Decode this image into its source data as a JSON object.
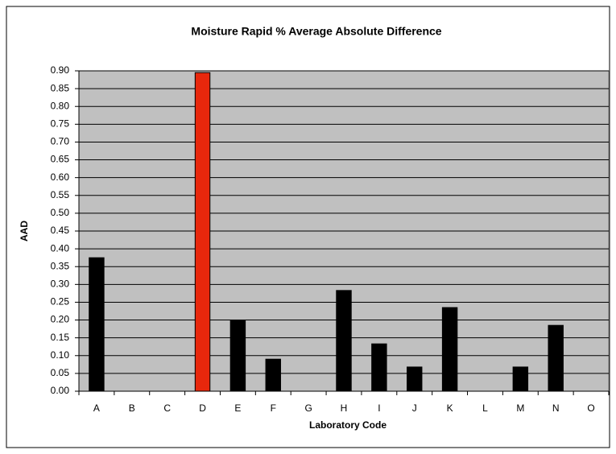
{
  "chart_data": {
    "type": "bar",
    "title": "Moisture Rapid % Average Absolute Difference",
    "x_label": "Laboratory Code",
    "y_label": "AAD",
    "categories": [
      "A",
      "B",
      "C",
      "D",
      "E",
      "F",
      "G",
      "H",
      "I",
      "J",
      "K",
      "L",
      "M",
      "N",
      "O"
    ],
    "values": [
      0.375,
      null,
      null,
      0.895,
      0.2,
      0.09,
      null,
      0.283,
      0.133,
      0.068,
      0.235,
      null,
      0.068,
      0.185,
      null
    ],
    "colors": [
      "#000000",
      "#000000",
      "#000000",
      "#e8270c",
      "#000000",
      "#000000",
      "#000000",
      "#000000",
      "#000000",
      "#000000",
      "#000000",
      "#000000",
      "#000000",
      "#000000",
      "#000000"
    ],
    "ylim": [
      0,
      0.9
    ],
    "yticks": [
      {
        "value": 0,
        "label": "0.00"
      },
      {
        "value": 0.05,
        "label": "0.05"
      },
      {
        "value": 0.1,
        "label": "0.10"
      },
      {
        "value": 0.15,
        "label": "0.15"
      },
      {
        "value": 0.2,
        "label": "0.20"
      },
      {
        "value": 0.25,
        "label": "0.25"
      },
      {
        "value": 0.3,
        "label": "0.30"
      },
      {
        "value": 0.35,
        "label": "0.35"
      },
      {
        "value": 0.4,
        "label": "0.40"
      },
      {
        "value": 0.45,
        "label": "0.45"
      },
      {
        "value": 0.5,
        "label": "0.50"
      },
      {
        "value": 0.55,
        "label": "0.55"
      },
      {
        "value": 0.6,
        "label": "0.60"
      },
      {
        "value": 0.65,
        "label": "0.65"
      },
      {
        "value": 0.7,
        "label": "0.70"
      },
      {
        "value": 0.75,
        "label": "0.75"
      },
      {
        "value": 0.8,
        "label": "0.80"
      },
      {
        "value": 0.85,
        "label": "0.85"
      },
      {
        "value": 0.9,
        "label": "0.90"
      }
    ],
    "grid": true,
    "plot_background": "#c0c0c0"
  }
}
